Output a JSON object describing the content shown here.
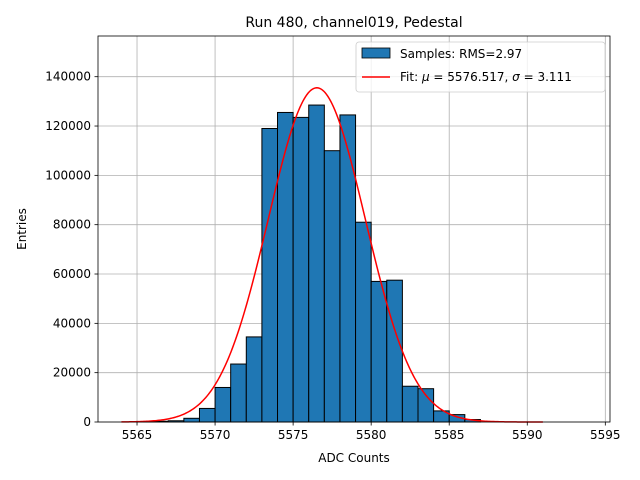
{
  "chart_data": {
    "type": "bar",
    "title": "Run 480, channel019, Pedestal",
    "xlabel": "ADC Counts",
    "ylabel": "Entries",
    "xlim": [
      5562.5,
      5595.3
    ],
    "ylim": [
      0,
      156500
    ],
    "grid": true,
    "legend_position": "top-right",
    "xticks": [
      5565,
      5570,
      5575,
      5580,
      5585,
      5590,
      5595
    ],
    "yticks": [
      0,
      20000,
      40000,
      60000,
      80000,
      100000,
      120000,
      140000
    ],
    "histogram": {
      "name": "Samples: RMS=2.97",
      "bin_edges": [
        5565,
        5566,
        5567,
        5568,
        5569,
        5570,
        5571,
        5572,
        5573,
        5574,
        5575,
        5576,
        5577,
        5578,
        5579,
        5580,
        5581,
        5582,
        5583,
        5584,
        5585,
        5586,
        5587
      ],
      "values": [
        200,
        300,
        500,
        1500,
        5500,
        14000,
        23500,
        34500,
        119000,
        125500,
        123500,
        128500,
        110000,
        124500,
        81000,
        57000,
        57500,
        14500,
        13500,
        4500,
        3000,
        1000
      ],
      "color": "#1f77b4"
    },
    "fit": {
      "name": "Fit: μ = 5576.517, σ = 3.111",
      "label_prefix": "Fit: ",
      "mu_value": "5576.517",
      "sigma_value": "3.111",
      "mu": 5576.517,
      "sigma": 3.111,
      "amplitude": 135500,
      "x_range": [
        5564,
        5591
      ],
      "color": "#ff0000"
    }
  }
}
